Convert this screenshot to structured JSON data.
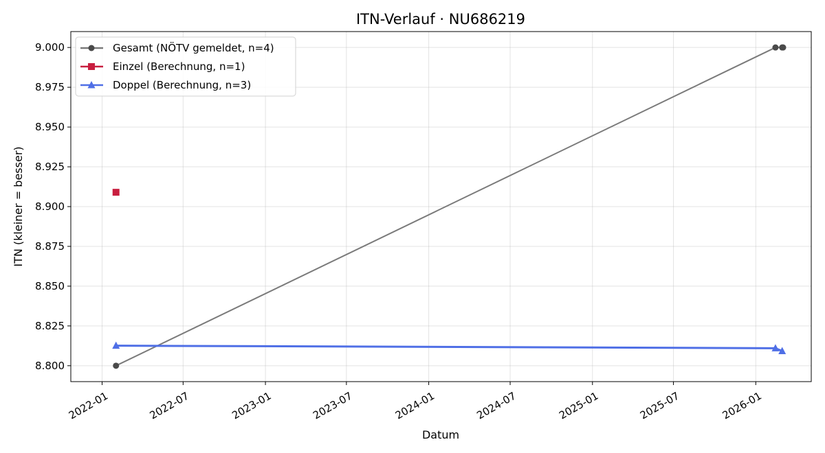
{
  "chart_data": {
    "type": "line",
    "title": "ITN-Verlauf · NU686219",
    "xlabel": "Datum",
    "ylabel": "ITN  (kleiner = besser)",
    "x_axis_type": "date",
    "xlim": [
      "2021-10-23",
      "2026-05-05"
    ],
    "ylim": [
      8.79,
      9.01
    ],
    "x_ticks": [
      "2022-01",
      "2022-07",
      "2023-01",
      "2023-07",
      "2024-01",
      "2024-07",
      "2025-01",
      "2025-07",
      "2026-01"
    ],
    "y_ticks": [
      8.8,
      8.825,
      8.85,
      8.875,
      8.9,
      8.925,
      8.95,
      8.975,
      9.0
    ],
    "y_tick_labels": [
      "8.800",
      "8.825",
      "8.850",
      "8.875",
      "8.900",
      "8.925",
      "8.950",
      "8.975",
      "9.000"
    ],
    "grid": true,
    "legend_position": "top-left",
    "series": [
      {
        "name": "Gesamt (NÖTV gemeldet, n=4)",
        "color": "#7a7a7a",
        "marker": "circle",
        "line": true,
        "points": [
          {
            "x": "2022-02-01",
            "y": 8.8
          },
          {
            "x": "2026-02-14",
            "y": 9.0
          },
          {
            "x": "2026-03-01",
            "y": 9.0
          },
          {
            "x": "2026-03-03",
            "y": 9.0
          }
        ]
      },
      {
        "name": "Einzel (Berechnung, n=1)",
        "color": "#c81e3f",
        "marker": "square",
        "line": true,
        "points": [
          {
            "x": "2022-02-01",
            "y": 8.909
          }
        ]
      },
      {
        "name": "Doppel (Berechnung, n=3)",
        "color": "#4f6fe6",
        "marker": "triangle",
        "line": true,
        "points": [
          {
            "x": "2022-02-01",
            "y": 8.8126
          },
          {
            "x": "2026-02-14",
            "y": 8.811
          },
          {
            "x": "2026-03-01",
            "y": 8.8092
          }
        ]
      }
    ]
  }
}
